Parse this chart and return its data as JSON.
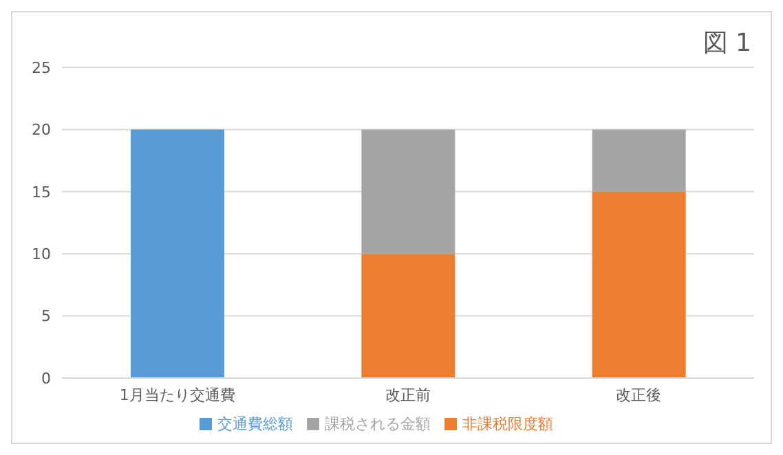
{
  "chart_data": {
    "type": "bar",
    "title": "図 1",
    "stacked": true,
    "categories": [
      "1月当たり交通費",
      "改正前",
      "改正後"
    ],
    "series": [
      {
        "name": "交通費総額",
        "color": "#5b9bd5",
        "values": [
          20,
          null,
          null
        ]
      },
      {
        "name": "非課税限度額",
        "color": "#ed7d31",
        "values": [
          null,
          10,
          15
        ]
      },
      {
        "name": "課税される金額",
        "color": "#a5a5a5",
        "values": [
          null,
          10,
          5
        ]
      }
    ],
    "ylim": [
      0,
      25
    ],
    "yticks": [
      0,
      5,
      10,
      15,
      20,
      25
    ],
    "grid": "y",
    "legend": "bottom"
  }
}
